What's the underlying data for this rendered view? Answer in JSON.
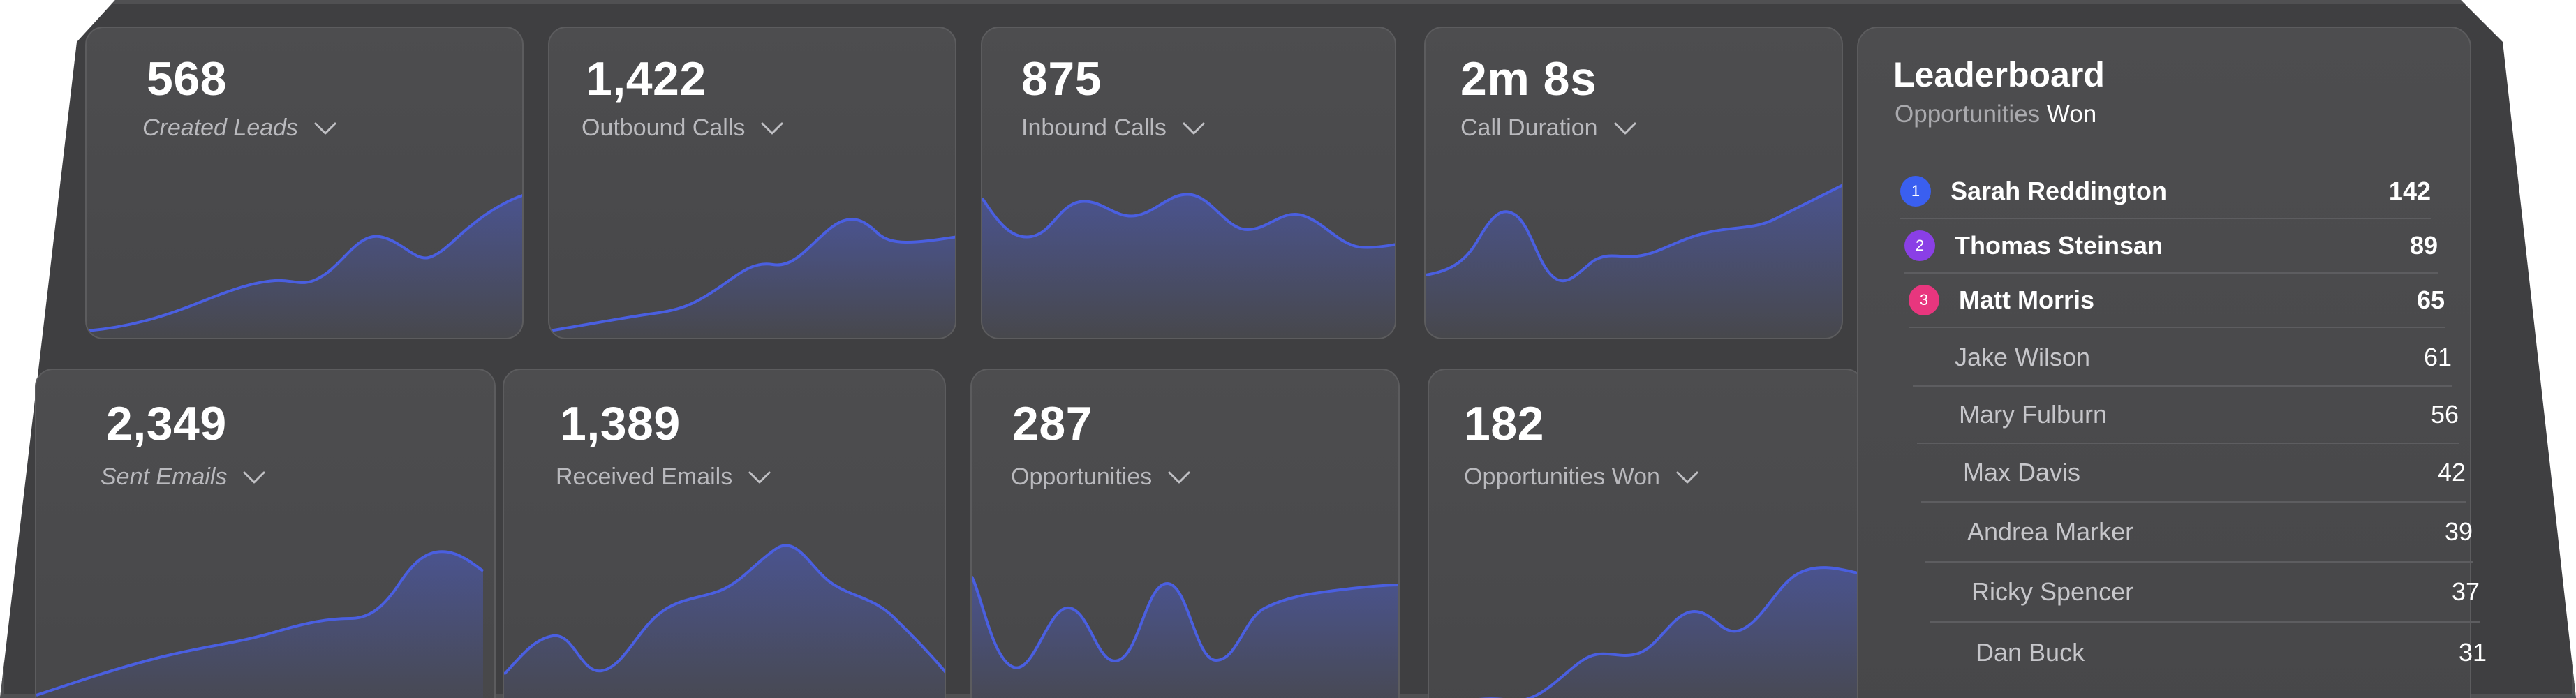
{
  "colors": {
    "accent": "#4a5fe0",
    "rank1": "#3a5ff0",
    "rank2": "#8a3fe6",
    "rank3": "#e8367e"
  },
  "metrics": [
    {
      "value": "568",
      "label": "Created Leads",
      "icon": "chevron-down-icon"
    },
    {
      "value": "1,422",
      "label": "Outbound Calls",
      "icon": "chevron-down-icon"
    },
    {
      "value": "875",
      "label": "Inbound Calls",
      "icon": "chevron-down-icon"
    },
    {
      "value": "2m 8s",
      "label": "Call Duration",
      "icon": "chevron-down-icon"
    },
    {
      "value": "2,349",
      "label": "Sent Emails",
      "icon": "chevron-down-icon"
    },
    {
      "value": "1,389",
      "label": "Received Emails",
      "icon": "chevron-down-icon"
    },
    {
      "value": "287",
      "label": "Opportunities",
      "icon": "chevron-down-icon"
    },
    {
      "value": "182",
      "label": "Opportunities Won",
      "icon": "chevron-down-icon"
    }
  ],
  "leaderboard": {
    "title": "Leaderboard",
    "subtitle_prefix": "Opportunities",
    "subtitle_metric": "Won",
    "rows": [
      {
        "rank": "1",
        "name": "Sarah Reddington",
        "score": "142"
      },
      {
        "rank": "2",
        "name": "Thomas Steinsan",
        "score": "89"
      },
      {
        "rank": "3",
        "name": "Matt Morris",
        "score": "65"
      },
      {
        "name": "Jake Wilson",
        "score": "61"
      },
      {
        "name": "Mary Fulburn",
        "score": "56"
      },
      {
        "name": "Max Davis",
        "score": "42"
      },
      {
        "name": "Andrea Marker",
        "score": "39"
      },
      {
        "name": "Ricky Spencer",
        "score": "37"
      },
      {
        "name": "Dan Buck",
        "score": "31"
      }
    ]
  }
}
